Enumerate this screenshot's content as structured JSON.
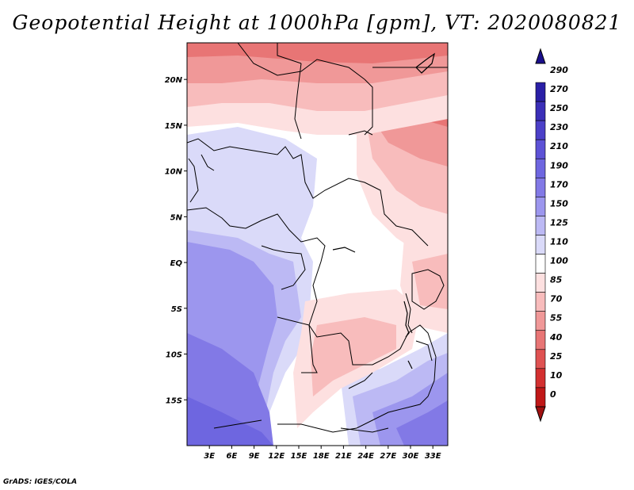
{
  "title": "Geopotential Height at 1000hPa [gpm], VT: 2020080821",
  "footer": "GrADS: IGES/COLA",
  "map": {
    "lon_labels": [
      "3E",
      "6E",
      "9E",
      "12E",
      "15E",
      "18E",
      "21E",
      "24E",
      "27E",
      "30E",
      "33E"
    ],
    "lat_labels": [
      "20N",
      "15N",
      "10N",
      "5N",
      "EQ",
      "5S",
      "10S",
      "15S"
    ],
    "lon_range": [
      0,
      35
    ],
    "lat_range": [
      -20,
      24
    ]
  },
  "colorbar": {
    "levels": [
      "290",
      "270",
      "250",
      "230",
      "210",
      "190",
      "170",
      "150",
      "125",
      "110",
      "100",
      "85",
      "70",
      "55",
      "40",
      "25",
      "10",
      "0"
    ],
    "colors": [
      "#1a0f8c",
      "#2a1fa6",
      "#3b2fb8",
      "#4c40c8",
      "#5d52d6",
      "#6e66e0",
      "#8279e6",
      "#9c96ee",
      "#bcb9f4",
      "#dadaf9",
      "#ffffff",
      "#fde0e0",
      "#f8bcbc",
      "#f09898",
      "#e87575",
      "#df5252",
      "#d33030",
      "#c01818",
      "#a01010"
    ]
  },
  "field": {
    "description_levels": "index into colorbar.colors, from bottom (0 = darkest red) to top",
    "rows": []
  }
}
